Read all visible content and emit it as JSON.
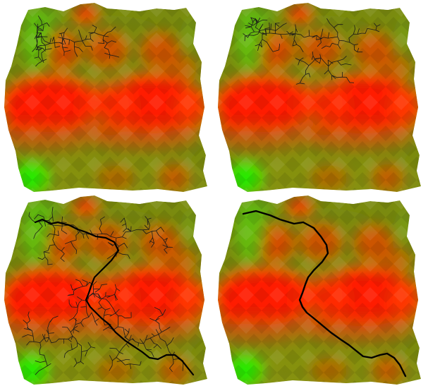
{
  "figure": {
    "panels": [
      {
        "id": "panel-1",
        "step": 1,
        "tree_density": "sparse"
      },
      {
        "id": "panel-2",
        "step": 2,
        "tree_density": "medium"
      },
      {
        "id": "panel-3",
        "step": 3,
        "tree_density": "dense",
        "has_path": true
      },
      {
        "id": "panel-4",
        "step": 4,
        "tree_density": "none",
        "has_path": true
      }
    ],
    "colors": {
      "high_cost": "#ff1a00",
      "mid_cost": "#7a8a10",
      "low_cost": "#22ee00",
      "tree": "#1a1a1a",
      "path": "#000000",
      "background": "#ffffff"
    }
  }
}
